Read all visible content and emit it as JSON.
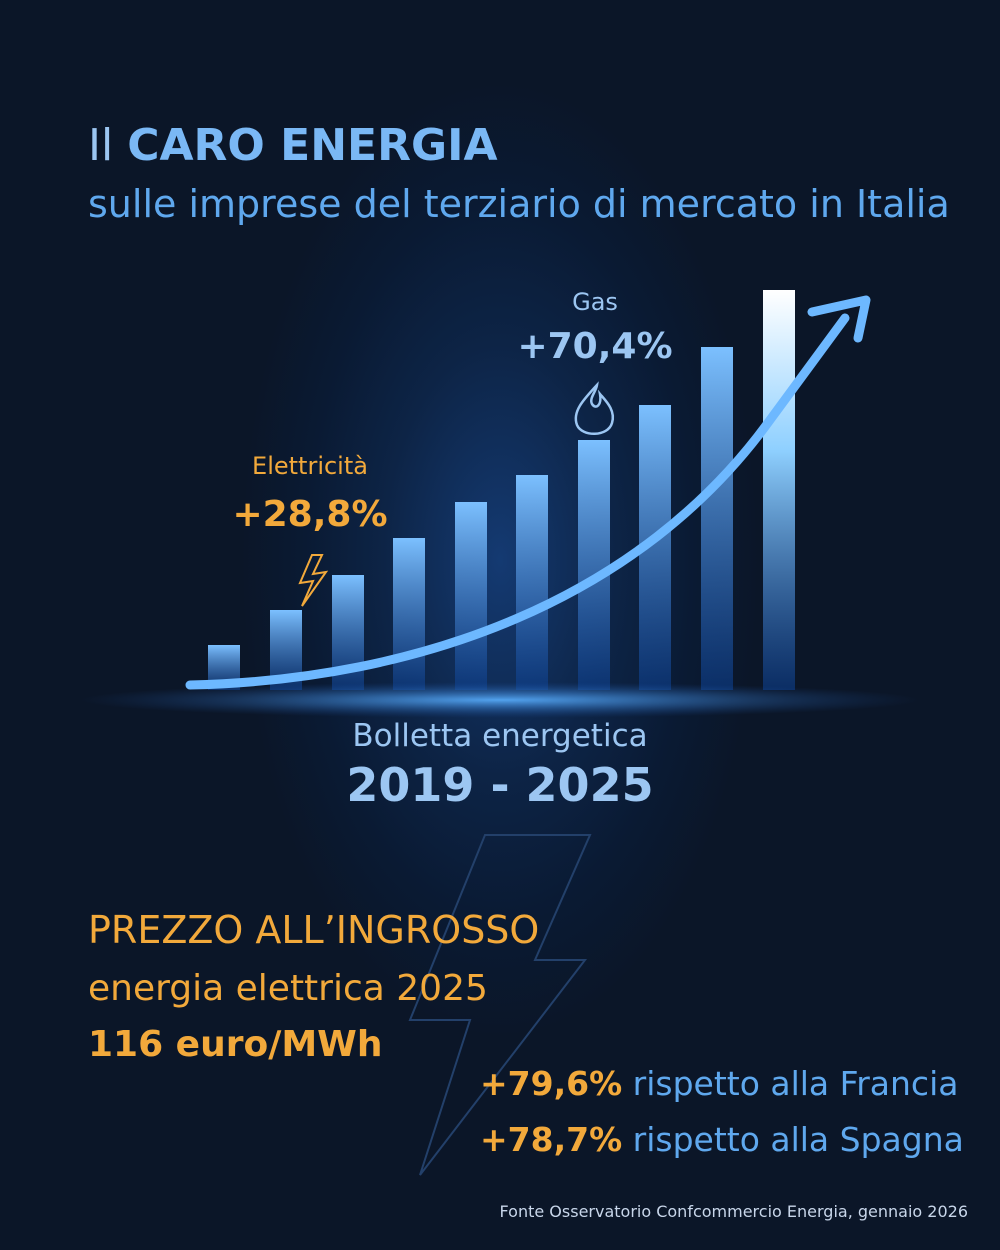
{
  "header": {
    "title_prefix": "Il",
    "title_bold": "CARO ENERGIA",
    "subtitle": "sulle imprese del terziario di mercato in Italia"
  },
  "gas": {
    "label": "Gas",
    "value": "+70,4%"
  },
  "electricity": {
    "label": "Elettricità",
    "value": "+28,8%"
  },
  "bill": {
    "label": "Bolletta energetica",
    "period": "2019 - 2025"
  },
  "wholesale": {
    "title": "PREZZO ALL’INGROSSO",
    "subtitle": "energia elettrica 2025",
    "price": "116 euro/MWh",
    "comparisons": [
      {
        "value": "+79,6%",
        "text": "rispetto alla Francia"
      },
      {
        "value": "+78,7%",
        "text": "rispetto alla Spagna"
      }
    ]
  },
  "source": "Fonte Osservatorio Confcommercio Energia, gennaio 2026"
}
